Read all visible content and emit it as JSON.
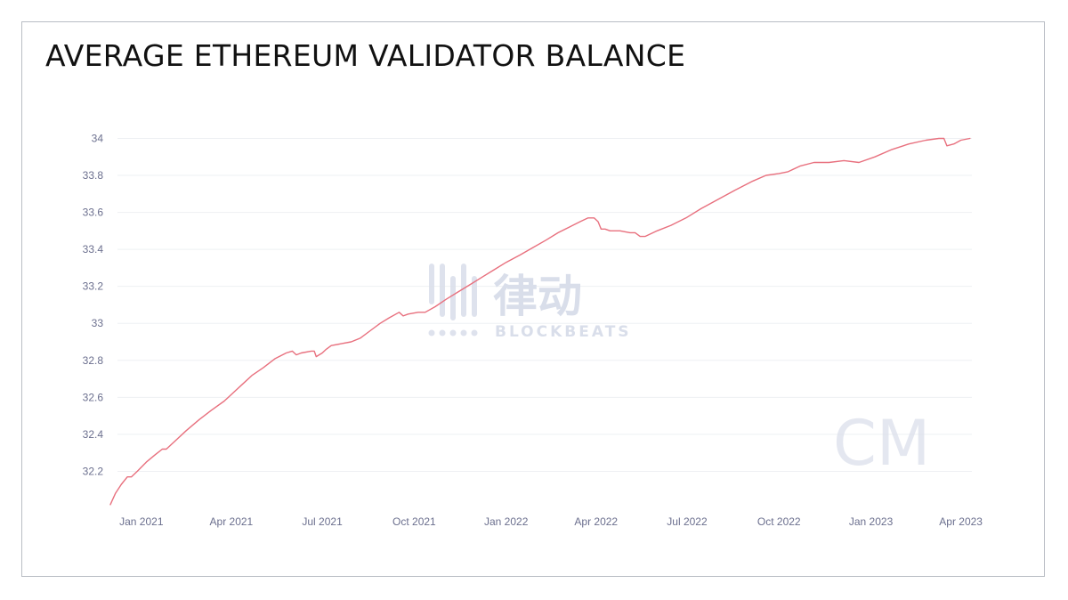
{
  "title": "AVERAGE ETHEREUM VALIDATOR BALANCE",
  "watermark": {
    "brand_cn": "律动",
    "brand_en": "BLOCKBEATS",
    "corner_logo": "CM"
  },
  "colors": {
    "line": "#e8707e",
    "tick_text": "#6b6f8e",
    "grid": "#eef0f3",
    "watermark": "#d9deea"
  },
  "chart_data": {
    "type": "line",
    "title": "AVERAGE ETHEREUM VALIDATOR BALANCE",
    "xlabel": "",
    "ylabel": "",
    "xlim": [
      "2020-12-01",
      "2023-04-12"
    ],
    "ylim": [
      32.0,
      34.06
    ],
    "grid": true,
    "legend": "none",
    "y_ticks": [
      "32.2",
      "32.4",
      "32.6",
      "32.8",
      "33",
      "33.2",
      "33.4",
      "33.6",
      "33.8",
      "34"
    ],
    "x_ticks": [
      {
        "date": "2021-01-01",
        "label": "Jan 2021"
      },
      {
        "date": "2021-04-01",
        "label": "Apr 2021"
      },
      {
        "date": "2021-07-01",
        "label": "Jul 2021"
      },
      {
        "date": "2021-10-01",
        "label": "Oct 2021"
      },
      {
        "date": "2022-01-01",
        "label": "Jan 2022"
      },
      {
        "date": "2022-04-01",
        "label": "Apr 2022"
      },
      {
        "date": "2022-07-01",
        "label": "Jul 2022"
      },
      {
        "date": "2022-10-01",
        "label": "Oct 2022"
      },
      {
        "date": "2023-01-01",
        "label": "Jan 2023"
      },
      {
        "date": "2023-04-01",
        "label": "Apr 2023"
      }
    ],
    "series": [
      {
        "values": [
          [
            "2020-12-01",
            32.02
          ],
          [
            "2020-12-06",
            32.08
          ],
          [
            "2020-12-12",
            32.13
          ],
          [
            "2020-12-18",
            32.17
          ],
          [
            "2020-12-22",
            32.17
          ],
          [
            "2020-12-28",
            32.2
          ],
          [
            "2021-01-06",
            32.25
          ],
          [
            "2021-01-15",
            32.29
          ],
          [
            "2021-01-22",
            32.32
          ],
          [
            "2021-01-26",
            32.32
          ],
          [
            "2021-02-05",
            32.37
          ],
          [
            "2021-02-15",
            32.42
          ],
          [
            "2021-02-28",
            32.48
          ],
          [
            "2021-03-12",
            32.53
          ],
          [
            "2021-03-25",
            32.58
          ],
          [
            "2021-04-04",
            32.63
          ],
          [
            "2021-04-14",
            32.68
          ],
          [
            "2021-04-22",
            32.72
          ],
          [
            "2021-05-03",
            32.76
          ],
          [
            "2021-05-15",
            32.81
          ],
          [
            "2021-05-26",
            32.84
          ],
          [
            "2021-06-01",
            32.85
          ],
          [
            "2021-06-05",
            32.83
          ],
          [
            "2021-06-10",
            32.84
          ],
          [
            "2021-06-20",
            32.85
          ],
          [
            "2021-06-23",
            32.85
          ],
          [
            "2021-06-25",
            32.82
          ],
          [
            "2021-07-01",
            32.84
          ],
          [
            "2021-07-05",
            32.86
          ],
          [
            "2021-07-10",
            32.88
          ],
          [
            "2021-07-20",
            32.89
          ],
          [
            "2021-07-30",
            32.9
          ],
          [
            "2021-08-08",
            32.92
          ],
          [
            "2021-08-18",
            32.96
          ],
          [
            "2021-08-28",
            33.0
          ],
          [
            "2021-09-06",
            33.03
          ],
          [
            "2021-09-16",
            33.06
          ],
          [
            "2021-09-20",
            33.04
          ],
          [
            "2021-09-25",
            33.05
          ],
          [
            "2021-10-05",
            33.06
          ],
          [
            "2021-10-12",
            33.06
          ],
          [
            "2021-10-22",
            33.09
          ],
          [
            "2021-11-02",
            33.13
          ],
          [
            "2021-11-14",
            33.17
          ],
          [
            "2021-11-26",
            33.21
          ],
          [
            "2021-12-08",
            33.25
          ],
          [
            "2021-12-20",
            33.29
          ],
          [
            "2022-01-01",
            33.33
          ],
          [
            "2022-01-15",
            33.37
          ],
          [
            "2022-01-28",
            33.41
          ],
          [
            "2022-02-10",
            33.45
          ],
          [
            "2022-02-22",
            33.49
          ],
          [
            "2022-03-05",
            33.52
          ],
          [
            "2022-03-16",
            33.55
          ],
          [
            "2022-03-24",
            33.57
          ],
          [
            "2022-03-30",
            33.57
          ],
          [
            "2022-04-03",
            33.55
          ],
          [
            "2022-04-06",
            33.51
          ],
          [
            "2022-04-10",
            33.51
          ],
          [
            "2022-04-15",
            33.5
          ],
          [
            "2022-04-25",
            33.5
          ],
          [
            "2022-05-05",
            33.49
          ],
          [
            "2022-05-10",
            33.49
          ],
          [
            "2022-05-15",
            33.47
          ],
          [
            "2022-05-20",
            33.47
          ],
          [
            "2022-06-01",
            33.5
          ],
          [
            "2022-06-15",
            33.53
          ],
          [
            "2022-06-30",
            33.57
          ],
          [
            "2022-07-15",
            33.62
          ],
          [
            "2022-08-01",
            33.67
          ],
          [
            "2022-08-18",
            33.72
          ],
          [
            "2022-09-05",
            33.77
          ],
          [
            "2022-09-18",
            33.8
          ],
          [
            "2022-10-01",
            33.81
          ],
          [
            "2022-10-10",
            33.82
          ],
          [
            "2022-10-22",
            33.85
          ],
          [
            "2022-11-05",
            33.87
          ],
          [
            "2022-11-20",
            33.87
          ],
          [
            "2022-12-05",
            33.88
          ],
          [
            "2022-12-20",
            33.87
          ],
          [
            "2023-01-05",
            33.9
          ],
          [
            "2023-01-22",
            33.94
          ],
          [
            "2023-02-08",
            33.97
          ],
          [
            "2023-02-25",
            33.99
          ],
          [
            "2023-03-10",
            34.0
          ],
          [
            "2023-03-15",
            34.0
          ],
          [
            "2023-03-18",
            33.96
          ],
          [
            "2023-03-25",
            33.97
          ],
          [
            "2023-04-01",
            33.99
          ],
          [
            "2023-04-10",
            34.0
          ]
        ]
      }
    ]
  }
}
